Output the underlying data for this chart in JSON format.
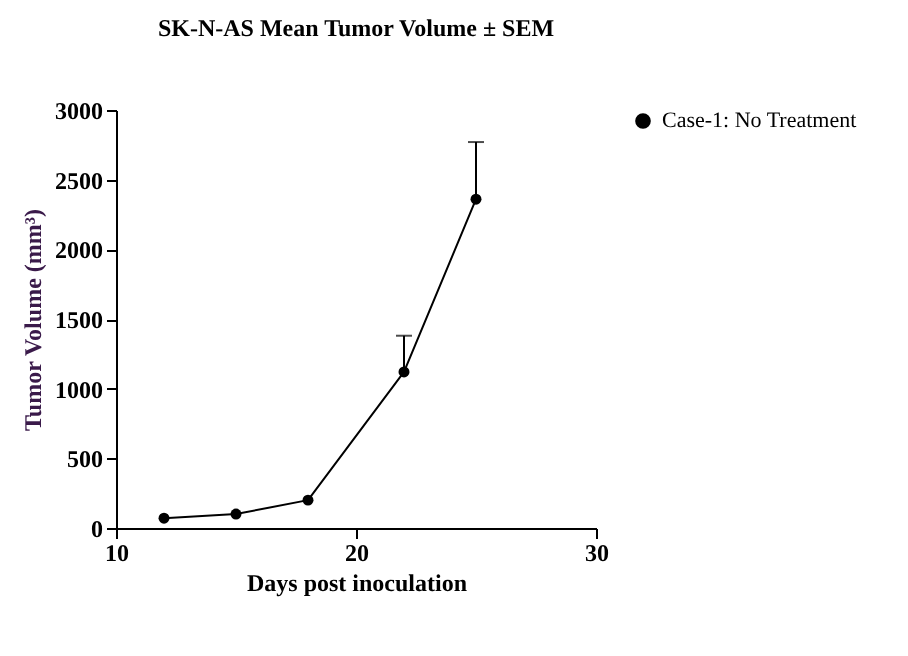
{
  "chart_data": {
    "type": "line",
    "title": "SK-N-AS Mean Tumor Volume ± SEM",
    "xlabel": "Days post inoculation",
    "ylabel": "Tumor Volume (mm³)",
    "x": [
      12,
      15,
      18,
      22,
      25
    ],
    "series": [
      {
        "name": "Case-1: No Treatment",
        "color": "#000000",
        "values": [
          70,
          100,
          200,
          1120,
          2360
        ],
        "errors": [
          null,
          null,
          null,
          [
            1120,
            1380
          ],
          [
            2360,
            2770
          ]
        ]
      }
    ],
    "xlim": [
      10,
      30
    ],
    "xticks": [
      10,
      20,
      30
    ],
    "ylim": [
      0,
      3000
    ],
    "yticks": [
      0,
      500,
      1000,
      1500,
      2000,
      2500,
      3000
    ],
    "grid": false,
    "legend": "top right",
    "marker": "circle",
    "line_style": "solid"
  }
}
